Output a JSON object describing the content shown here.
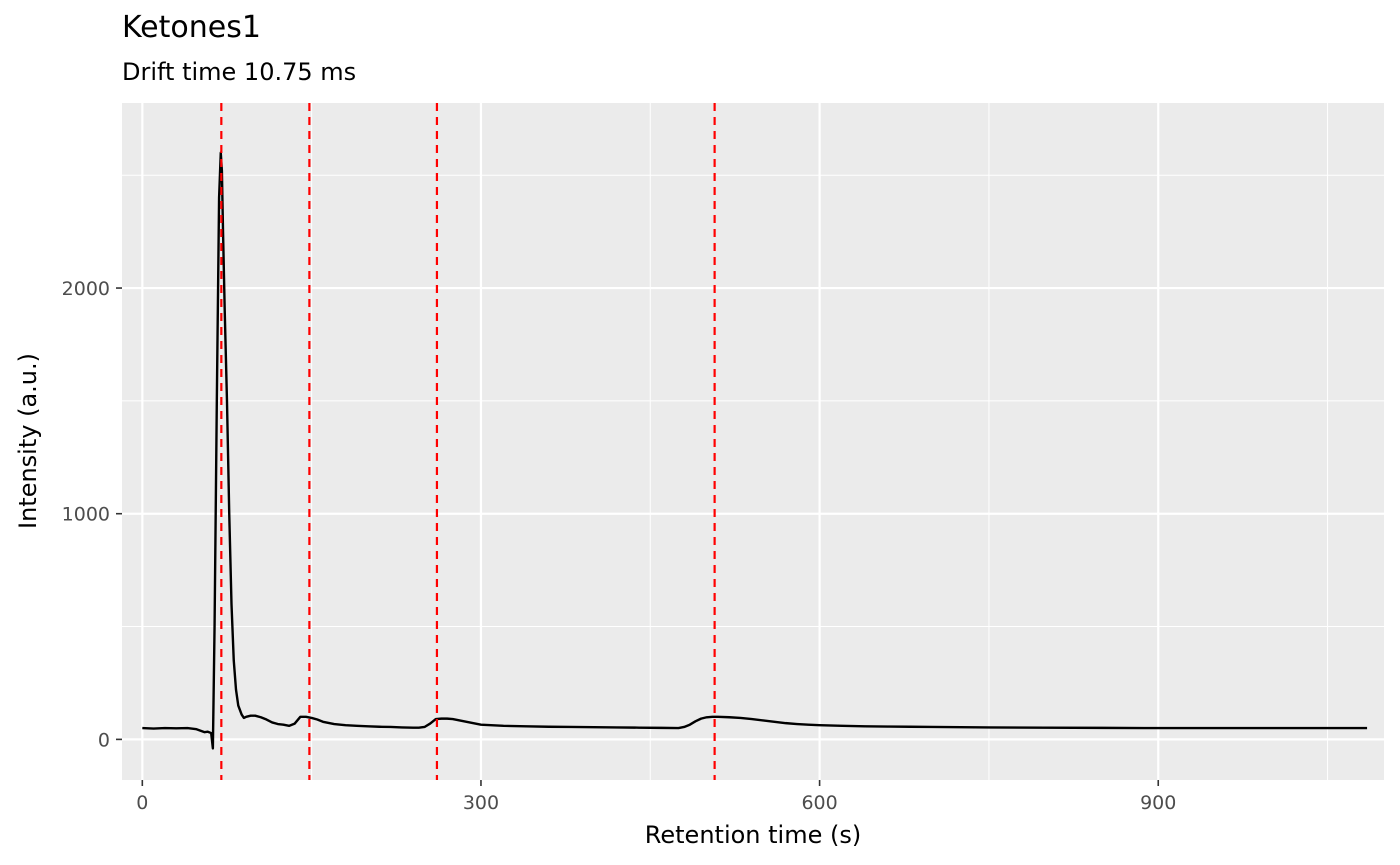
{
  "chart_data": {
    "type": "line",
    "title": "Ketones1",
    "subtitle": "Drift time 10.75 ms",
    "xlabel": "Retention time (s)",
    "ylabel": "Intensity (a.u.)",
    "xlim": [
      -18,
      1100
    ],
    "ylim": [
      -180,
      2820
    ],
    "x_ticks": [
      0,
      300,
      600,
      900
    ],
    "x_tick_labels": [
      "0",
      "300",
      "600",
      "900"
    ],
    "y_ticks": [
      0,
      1000,
      2000
    ],
    "y_tick_labels": [
      "0",
      "1000",
      "2000"
    ],
    "grid": true,
    "legend": "none",
    "peak_marker_color": "#ff0000",
    "line_color": "#000000",
    "panel_color": "#ebebeb",
    "peak_markers": [
      70,
      148,
      261,
      507
    ],
    "series": [
      {
        "x": [
          0,
          10,
          20,
          30,
          40,
          48,
          55,
          58,
          61,
          62.5,
          64,
          66,
          68,
          69.5,
          70.5,
          71.5,
          73,
          75,
          77,
          79,
          81,
          83,
          85,
          88,
          90,
          92,
          96,
          100,
          105,
          110,
          115,
          120,
          125,
          130,
          135,
          140,
          145,
          150,
          155,
          160,
          170,
          180,
          190,
          200,
          210,
          220,
          230,
          240,
          245,
          250,
          255,
          260,
          265,
          270,
          275,
          280,
          290,
          300,
          320,
          340,
          360,
          380,
          400,
          420,
          440,
          460,
          475,
          480,
          485,
          490,
          495,
          500,
          505,
          510,
          520,
          530,
          540,
          550,
          560,
          570,
          580,
          590,
          600,
          620,
          640,
          660,
          680,
          700,
          750,
          800,
          850,
          900,
          950,
          1000,
          1050,
          1085
        ],
        "values": [
          50,
          48,
          50,
          49,
          50,
          45,
          32,
          34,
          28,
          -40,
          500,
          1500,
          2400,
          2600,
          2520,
          2250,
          1900,
          1500,
          1000,
          600,
          350,
          220,
          150,
          110,
          95,
          100,
          105,
          105,
          98,
          88,
          75,
          68,
          65,
          60,
          70,
          100,
          100,
          95,
          88,
          78,
          68,
          63,
          60,
          58,
          56,
          55,
          53,
          52,
          52,
          55,
          70,
          90,
          92,
          92,
          90,
          85,
          75,
          65,
          60,
          58,
          56,
          55,
          54,
          53,
          52,
          51,
          50,
          55,
          65,
          80,
          92,
          98,
          100,
          100,
          98,
          95,
          90,
          84,
          78,
          72,
          68,
          65,
          63,
          60,
          58,
          57,
          56,
          55,
          53,
          52,
          51,
          50,
          50,
          50,
          50,
          50
        ]
      }
    ]
  }
}
